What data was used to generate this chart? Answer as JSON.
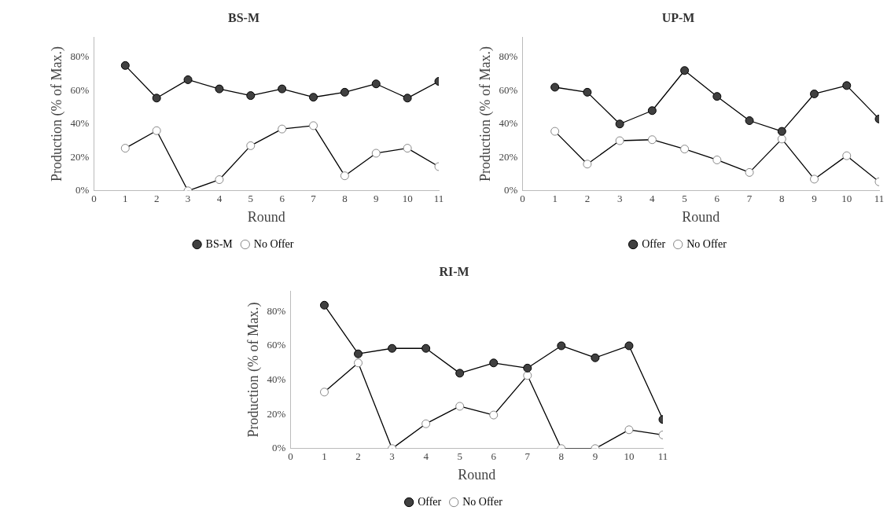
{
  "chart_data": [
    {
      "type": "line",
      "title": "BS-M",
      "xlabel": "Round",
      "ylabel": "Production (% of Max.)",
      "x": [
        1,
        2,
        3,
        4,
        5,
        6,
        7,
        8,
        9,
        10,
        11
      ],
      "xlim": [
        0,
        11
      ],
      "xticks": [
        0,
        1,
        2,
        3,
        4,
        5,
        6,
        7,
        8,
        9,
        10,
        11
      ],
      "ylim": [
        0,
        92
      ],
      "yticks": [
        {
          "value": 0,
          "label": "0%"
        },
        {
          "value": 20,
          "label": "20%"
        },
        {
          "value": 40,
          "label": "40%"
        },
        {
          "value": 60,
          "label": "60%"
        },
        {
          "value": 80,
          "label": "80%"
        }
      ],
      "grid": false,
      "legend": "bottom",
      "marker": "circle",
      "series": [
        {
          "name": "BS-M",
          "color": "#404040",
          "values": [
            75,
            55.5,
            66.5,
            61,
            57,
            61,
            56,
            59,
            64,
            55.5,
            65.5
          ]
        },
        {
          "name": "No Offer",
          "color": "#ffffff",
          "values": [
            25.5,
            36,
            0,
            6.7,
            27,
            37,
            39,
            9,
            22.5,
            25.5,
            14.5
          ]
        }
      ]
    },
    {
      "type": "line",
      "title": "UP-M",
      "xlabel": "Round",
      "ylabel": "Production (% of Max.)",
      "x": [
        1,
        2,
        3,
        4,
        5,
        6,
        7,
        8,
        9,
        10,
        11
      ],
      "xlim": [
        0,
        11
      ],
      "xticks": [
        0,
        1,
        2,
        3,
        4,
        5,
        6,
        7,
        8,
        9,
        10,
        11
      ],
      "ylim": [
        0,
        92
      ],
      "yticks": [
        {
          "value": 0,
          "label": "0%"
        },
        {
          "value": 20,
          "label": "20%"
        },
        {
          "value": 40,
          "label": "40%"
        },
        {
          "value": 60,
          "label": "60%"
        },
        {
          "value": 80,
          "label": "80%"
        }
      ],
      "grid": false,
      "legend": "bottom",
      "marker": "circle",
      "series": [
        {
          "name": "Offer",
          "color": "#404040",
          "values": [
            62,
            59,
            40,
            48,
            72,
            56.5,
            42,
            35.6,
            58,
            63,
            43
          ]
        },
        {
          "name": "No Offer",
          "color": "#ffffff",
          "values": [
            35.6,
            16,
            30,
            30.6,
            25,
            18.5,
            11,
            31,
            7,
            21,
            5.4
          ]
        }
      ]
    },
    {
      "type": "line",
      "title": "RI-M",
      "xlabel": "Round",
      "ylabel": "Production (% of Max.)",
      "x": [
        1,
        2,
        3,
        4,
        5,
        6,
        7,
        8,
        9,
        10,
        11
      ],
      "xlim": [
        0,
        11
      ],
      "xticks": [
        0,
        1,
        2,
        3,
        4,
        5,
        6,
        7,
        8,
        9,
        10,
        11
      ],
      "ylim": [
        0,
        92
      ],
      "yticks": [
        {
          "value": 0,
          "label": "0%"
        },
        {
          "value": 20,
          "label": "20%"
        },
        {
          "value": 40,
          "label": "40%"
        },
        {
          "value": 60,
          "label": "60%"
        },
        {
          "value": 80,
          "label": "80%"
        }
      ],
      "grid": false,
      "legend": "bottom",
      "marker": "circle",
      "series": [
        {
          "name": "Offer",
          "color": "#404040",
          "values": [
            83.7,
            55.3,
            58.5,
            58.5,
            44,
            50,
            47,
            60,
            53,
            60,
            17
          ]
        },
        {
          "name": "No Offer",
          "color": "#ffffff",
          "values": [
            33,
            50,
            0,
            14.5,
            24.7,
            19.6,
            42.7,
            0,
            0,
            11,
            8
          ]
        }
      ]
    }
  ]
}
